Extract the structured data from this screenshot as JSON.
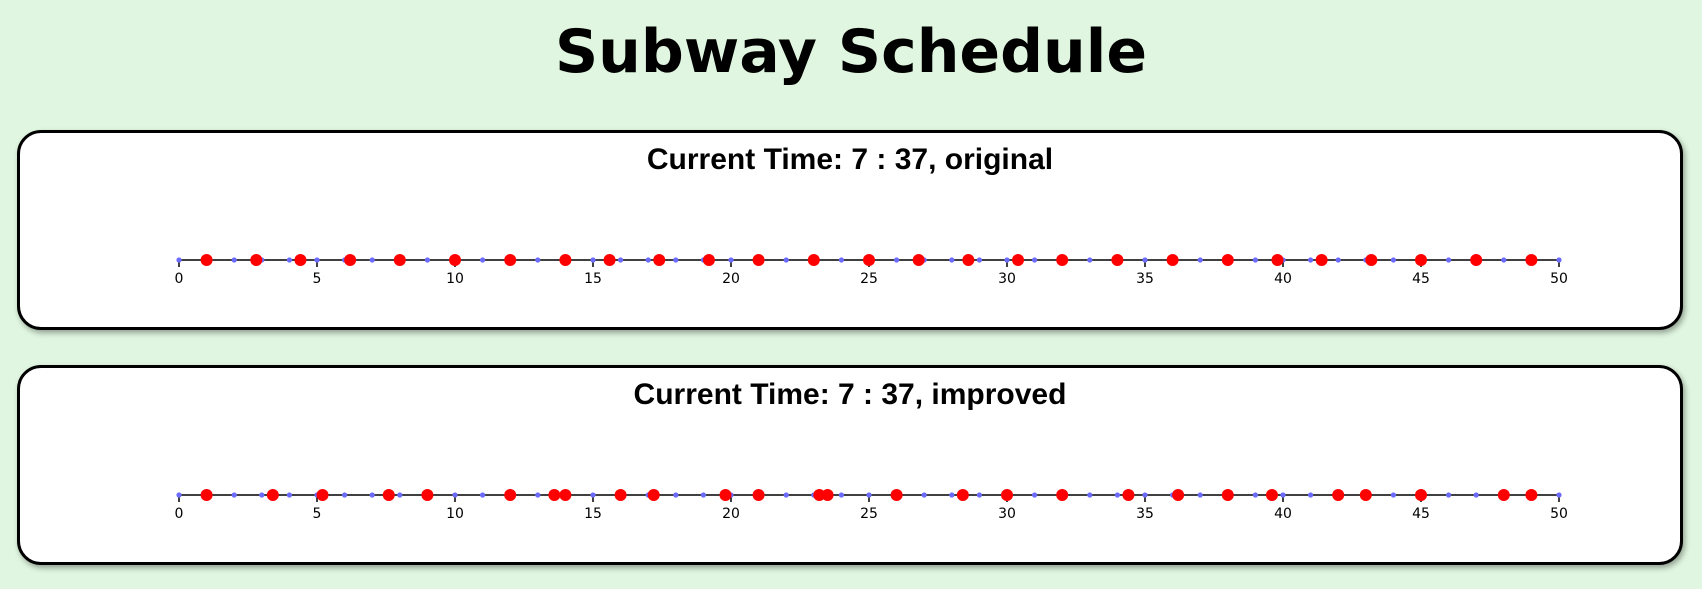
{
  "page": {
    "title": "Subway Schedule"
  },
  "colors": {
    "background": "#e0f6e0",
    "train_marker": "#ff0000",
    "minute_dot": "#6b6bff",
    "axis": "#000000"
  },
  "chart_data": [
    {
      "type": "scatter",
      "title": "Current Time: 7 : 37, original",
      "xlim": [
        0,
        50
      ],
      "x_ticks": [
        0,
        5,
        10,
        15,
        20,
        25,
        30,
        35,
        40,
        45,
        50
      ],
      "grid": false,
      "minute_markers": [
        0,
        1,
        2,
        3,
        4,
        5,
        6,
        7,
        8,
        9,
        10,
        11,
        12,
        13,
        14,
        15,
        16,
        17,
        18,
        19,
        20,
        21,
        22,
        23,
        24,
        25,
        26,
        27,
        28,
        29,
        30,
        31,
        32,
        33,
        34,
        35,
        36,
        37,
        38,
        39,
        40,
        41,
        42,
        43,
        44,
        45,
        46,
        47,
        48,
        49,
        50
      ],
      "train_arrivals": [
        1.0,
        2.8,
        4.4,
        6.2,
        8.0,
        10.0,
        12.0,
        14.0,
        15.6,
        17.4,
        19.2,
        21.0,
        23.0,
        25.0,
        26.8,
        28.6,
        30.4,
        32.0,
        34.0,
        36.0,
        38.0,
        39.8,
        41.4,
        43.2,
        45.0,
        47.0,
        49.0
      ]
    },
    {
      "type": "scatter",
      "title": "Current Time: 7 : 37, improved",
      "xlim": [
        0,
        50
      ],
      "x_ticks": [
        0,
        5,
        10,
        15,
        20,
        25,
        30,
        35,
        40,
        45,
        50
      ],
      "grid": false,
      "minute_markers": [
        0,
        1,
        2,
        3,
        4,
        5,
        6,
        7,
        8,
        9,
        10,
        11,
        12,
        13,
        14,
        15,
        16,
        17,
        18,
        19,
        20,
        21,
        22,
        23,
        24,
        25,
        26,
        27,
        28,
        29,
        30,
        31,
        32,
        33,
        34,
        35,
        36,
        37,
        38,
        39,
        40,
        41,
        42,
        43,
        44,
        45,
        46,
        47,
        48,
        49,
        50
      ],
      "train_arrivals": [
        1.0,
        3.4,
        5.2,
        7.6,
        9.0,
        12.0,
        13.6,
        14.0,
        16.0,
        17.2,
        19.8,
        21.0,
        23.2,
        23.5,
        26.0,
        28.4,
        30.0,
        32.0,
        34.4,
        36.2,
        38.0,
        39.6,
        42.0,
        43.0,
        45.0,
        48.0,
        49.0
      ]
    }
  ]
}
